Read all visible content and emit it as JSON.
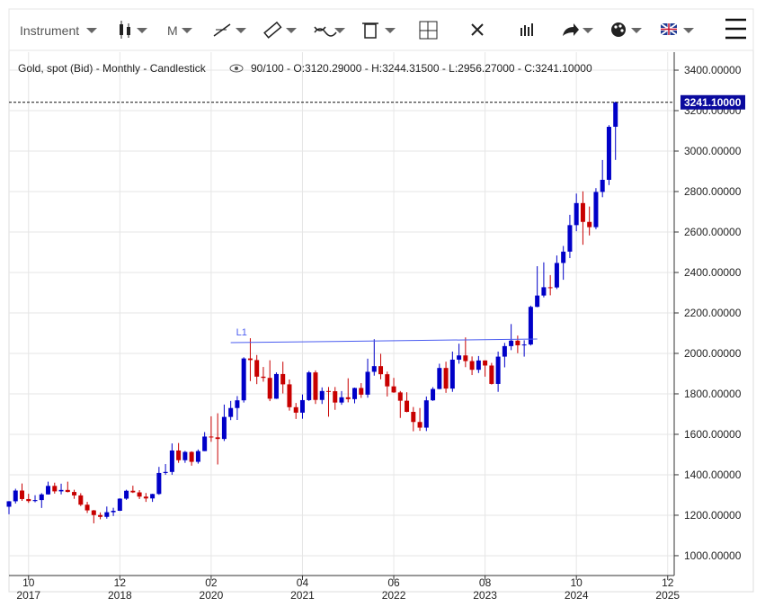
{
  "toolbar": {
    "instrument": "Instrument",
    "period": "M"
  },
  "chart_data": {
    "type": "candlestick",
    "title": "Gold, spot (Bid) - Monthly - Candlestick",
    "info": "90/100 - O:3120.29000 - H:3244.31500 - L:2956.27000 - C:3241.10000",
    "up_color": "#0000c8",
    "down_color": "#c80000",
    "grid": true,
    "x": [
      "2017-07",
      "2017-08",
      "2017-09",
      "2017-10",
      "2017-11",
      "2017-12",
      "2018-01",
      "2018-02",
      "2018-03",
      "2018-04",
      "2018-05",
      "2018-06",
      "2018-07",
      "2018-08",
      "2018-09",
      "2018-10",
      "2018-11",
      "2018-12",
      "2019-01",
      "2019-02",
      "2019-03",
      "2019-04",
      "2019-05",
      "2019-06",
      "2019-07",
      "2019-08",
      "2019-09",
      "2019-10",
      "2019-11",
      "2019-12",
      "2020-01",
      "2020-02",
      "2020-03",
      "2020-04",
      "2020-05",
      "2020-06",
      "2020-07",
      "2020-08",
      "2020-09",
      "2020-10",
      "2020-11",
      "2020-12",
      "2021-01",
      "2021-02",
      "2021-03",
      "2021-04",
      "2021-05",
      "2021-06",
      "2021-07",
      "2021-08",
      "2021-09",
      "2021-10",
      "2021-11",
      "2021-12",
      "2022-01",
      "2022-02",
      "2022-03",
      "2022-04",
      "2022-05",
      "2022-06",
      "2022-07",
      "2022-08",
      "2022-09",
      "2022-10",
      "2022-11",
      "2022-12",
      "2023-01",
      "2023-02",
      "2023-03",
      "2023-04",
      "2023-05",
      "2023-06",
      "2023-07",
      "2023-08",
      "2023-09",
      "2023-10",
      "2023-11",
      "2023-12",
      "2024-01",
      "2024-02",
      "2024-03",
      "2024-04",
      "2024-05",
      "2024-06",
      "2024-07",
      "2024-08",
      "2024-09",
      "2024-10",
      "2024-11",
      "2024-12",
      "2025-01",
      "2025-02",
      "2025-03",
      "2025-04"
    ],
    "ohlc": [
      [
        1242,
        1270,
        1205,
        1269
      ],
      [
        1269,
        1331,
        1258,
        1322
      ],
      [
        1322,
        1357,
        1271,
        1280
      ],
      [
        1280,
        1306,
        1261,
        1270
      ],
      [
        1270,
        1299,
        1264,
        1275
      ],
      [
        1275,
        1309,
        1236,
        1303
      ],
      [
        1303,
        1366,
        1302,
        1345
      ],
      [
        1345,
        1361,
        1307,
        1318
      ],
      [
        1318,
        1356,
        1303,
        1325
      ],
      [
        1325,
        1366,
        1313,
        1315
      ],
      [
        1315,
        1326,
        1281,
        1298
      ],
      [
        1298,
        1309,
        1245,
        1252
      ],
      [
        1252,
        1266,
        1211,
        1224
      ],
      [
        1224,
        1226,
        1160,
        1201
      ],
      [
        1201,
        1214,
        1180,
        1192
      ],
      [
        1192,
        1243,
        1183,
        1215
      ],
      [
        1215,
        1237,
        1196,
        1222
      ],
      [
        1222,
        1284,
        1221,
        1282
      ],
      [
        1282,
        1326,
        1276,
        1321
      ],
      [
        1321,
        1346,
        1310,
        1313
      ],
      [
        1313,
        1324,
        1280,
        1292
      ],
      [
        1292,
        1310,
        1266,
        1283
      ],
      [
        1283,
        1306,
        1266,
        1305
      ],
      [
        1305,
        1439,
        1301,
        1409
      ],
      [
        1409,
        1453,
        1400,
        1414
      ],
      [
        1414,
        1555,
        1400,
        1520
      ],
      [
        1520,
        1557,
        1459,
        1472
      ],
      [
        1472,
        1518,
        1459,
        1513
      ],
      [
        1513,
        1516,
        1445,
        1464
      ],
      [
        1464,
        1525,
        1455,
        1517
      ],
      [
        1517,
        1611,
        1517,
        1589
      ],
      [
        1589,
        1689,
        1563,
        1585
      ],
      [
        1585,
        1704,
        1451,
        1577
      ],
      [
        1577,
        1747,
        1567,
        1686
      ],
      [
        1686,
        1765,
        1670,
        1730
      ],
      [
        1730,
        1789,
        1671,
        1768
      ],
      [
        1768,
        1981,
        1757,
        1975
      ],
      [
        1975,
        2075,
        1863,
        1967
      ],
      [
        1967,
        1992,
        1848,
        1885
      ],
      [
        1885,
        1933,
        1860,
        1879
      ],
      [
        1879,
        1966,
        1764,
        1776
      ],
      [
        1776,
        1906,
        1775,
        1898
      ],
      [
        1898,
        1959,
        1802,
        1847
      ],
      [
        1847,
        1871,
        1717,
        1734
      ],
      [
        1734,
        1755,
        1676,
        1707
      ],
      [
        1707,
        1797,
        1677,
        1769
      ],
      [
        1769,
        1913,
        1765,
        1906
      ],
      [
        1906,
        1916,
        1750,
        1770
      ],
      [
        1770,
        1832,
        1750,
        1814
      ],
      [
        1814,
        1834,
        1687,
        1813
      ],
      [
        1813,
        1834,
        1721,
        1757
      ],
      [
        1757,
        1814,
        1746,
        1783
      ],
      [
        1783,
        1877,
        1758,
        1774
      ],
      [
        1774,
        1831,
        1753,
        1829
      ],
      [
        1829,
        1853,
        1780,
        1796
      ],
      [
        1796,
        1974,
        1781,
        1909
      ],
      [
        1909,
        2070,
        1890,
        1937
      ],
      [
        1937,
        1998,
        1872,
        1897
      ],
      [
        1897,
        1910,
        1787,
        1837
      ],
      [
        1837,
        1879,
        1805,
        1807
      ],
      [
        1807,
        1814,
        1681,
        1766
      ],
      [
        1766,
        1808,
        1709,
        1711
      ],
      [
        1711,
        1735,
        1615,
        1661
      ],
      [
        1661,
        1730,
        1617,
        1633
      ],
      [
        1633,
        1787,
        1616,
        1768
      ],
      [
        1768,
        1833,
        1765,
        1824
      ],
      [
        1824,
        1949,
        1823,
        1928
      ],
      [
        1928,
        1959,
        1805,
        1826
      ],
      [
        1826,
        2009,
        1810,
        1969
      ],
      [
        1969,
        2048,
        1949,
        1990
      ],
      [
        1990,
        2079,
        1932,
        1962
      ],
      [
        1962,
        1985,
        1893,
        1919
      ],
      [
        1919,
        1987,
        1903,
        1965
      ],
      [
        1965,
        1966,
        1885,
        1940
      ],
      [
        1940,
        1953,
        1846,
        1849
      ],
      [
        1849,
        2009,
        1810,
        1984
      ],
      [
        1984,
        2052,
        1931,
        2036
      ],
      [
        2036,
        2145,
        2016,
        2063
      ],
      [
        2063,
        2088,
        2001,
        2040
      ],
      [
        2040,
        2065,
        1984,
        2044
      ],
      [
        2044,
        2236,
        2039,
        2230
      ],
      [
        2230,
        2431,
        2228,
        2286
      ],
      [
        2286,
        2450,
        2277,
        2327
      ],
      [
        2327,
        2387,
        2287,
        2326
      ],
      [
        2326,
        2484,
        2318,
        2447
      ],
      [
        2447,
        2531,
        2364,
        2503
      ],
      [
        2503,
        2685,
        2471,
        2634
      ],
      [
        2634,
        2790,
        2604,
        2743
      ],
      [
        2743,
        2801,
        2537,
        2650
      ],
      [
        2650,
        2726,
        2583,
        2624
      ],
      [
        2624,
        2817,
        2614,
        2798
      ],
      [
        2798,
        2956,
        2772,
        2858
      ],
      [
        2858,
        3128,
        2832,
        3120
      ],
      [
        3120.29,
        3244.315,
        2956.27,
        3241.1
      ]
    ],
    "xlim": [
      "2017-07",
      "2026-01"
    ],
    "xticks": [
      {
        "value": "2017-10",
        "label": "10",
        "year": "2017"
      },
      {
        "value": "2018-12",
        "label": "12",
        "year": "2018"
      },
      {
        "value": "2020-02",
        "label": "02",
        "year": "2020"
      },
      {
        "value": "2021-04",
        "label": "04",
        "year": "2021"
      },
      {
        "value": "2022-06",
        "label": "06",
        "year": "2022"
      },
      {
        "value": "2023-08",
        "label": "08",
        "year": "2023"
      },
      {
        "value": "2024-10",
        "label": "10",
        "year": "2024"
      },
      {
        "value": "2025-12",
        "label": "12",
        "year": "2025"
      }
    ],
    "ylim": [
      902,
      3489
    ],
    "yticks": [
      {
        "value": 1000,
        "label": "1000.00000"
      },
      {
        "value": 1200,
        "label": "1200.00000"
      },
      {
        "value": 1400,
        "label": "1400.00000"
      },
      {
        "value": 1600,
        "label": "1600.00000"
      },
      {
        "value": 1800,
        "label": "1800.00000"
      },
      {
        "value": 2000,
        "label": "2000.00000"
      },
      {
        "value": 2200,
        "label": "2200.00000"
      },
      {
        "value": 2400,
        "label": "2400.00000"
      },
      {
        "value": 2600,
        "label": "2600.00000"
      },
      {
        "value": 2800,
        "label": "2800.00000"
      },
      {
        "value": 3000,
        "label": "3000.00000"
      },
      {
        "value": 3200,
        "label": "3200.00000"
      },
      {
        "value": 3400,
        "label": "3400.00000"
      }
    ],
    "last_price": 3241.1,
    "last_price_label": "3241.10000",
    "annotations": [
      {
        "label": "L1",
        "x": [
          "2020-05",
          "2024-04"
        ],
        "y": [
          2053,
          2071
        ],
        "color": "#4a5cf0"
      }
    ]
  }
}
